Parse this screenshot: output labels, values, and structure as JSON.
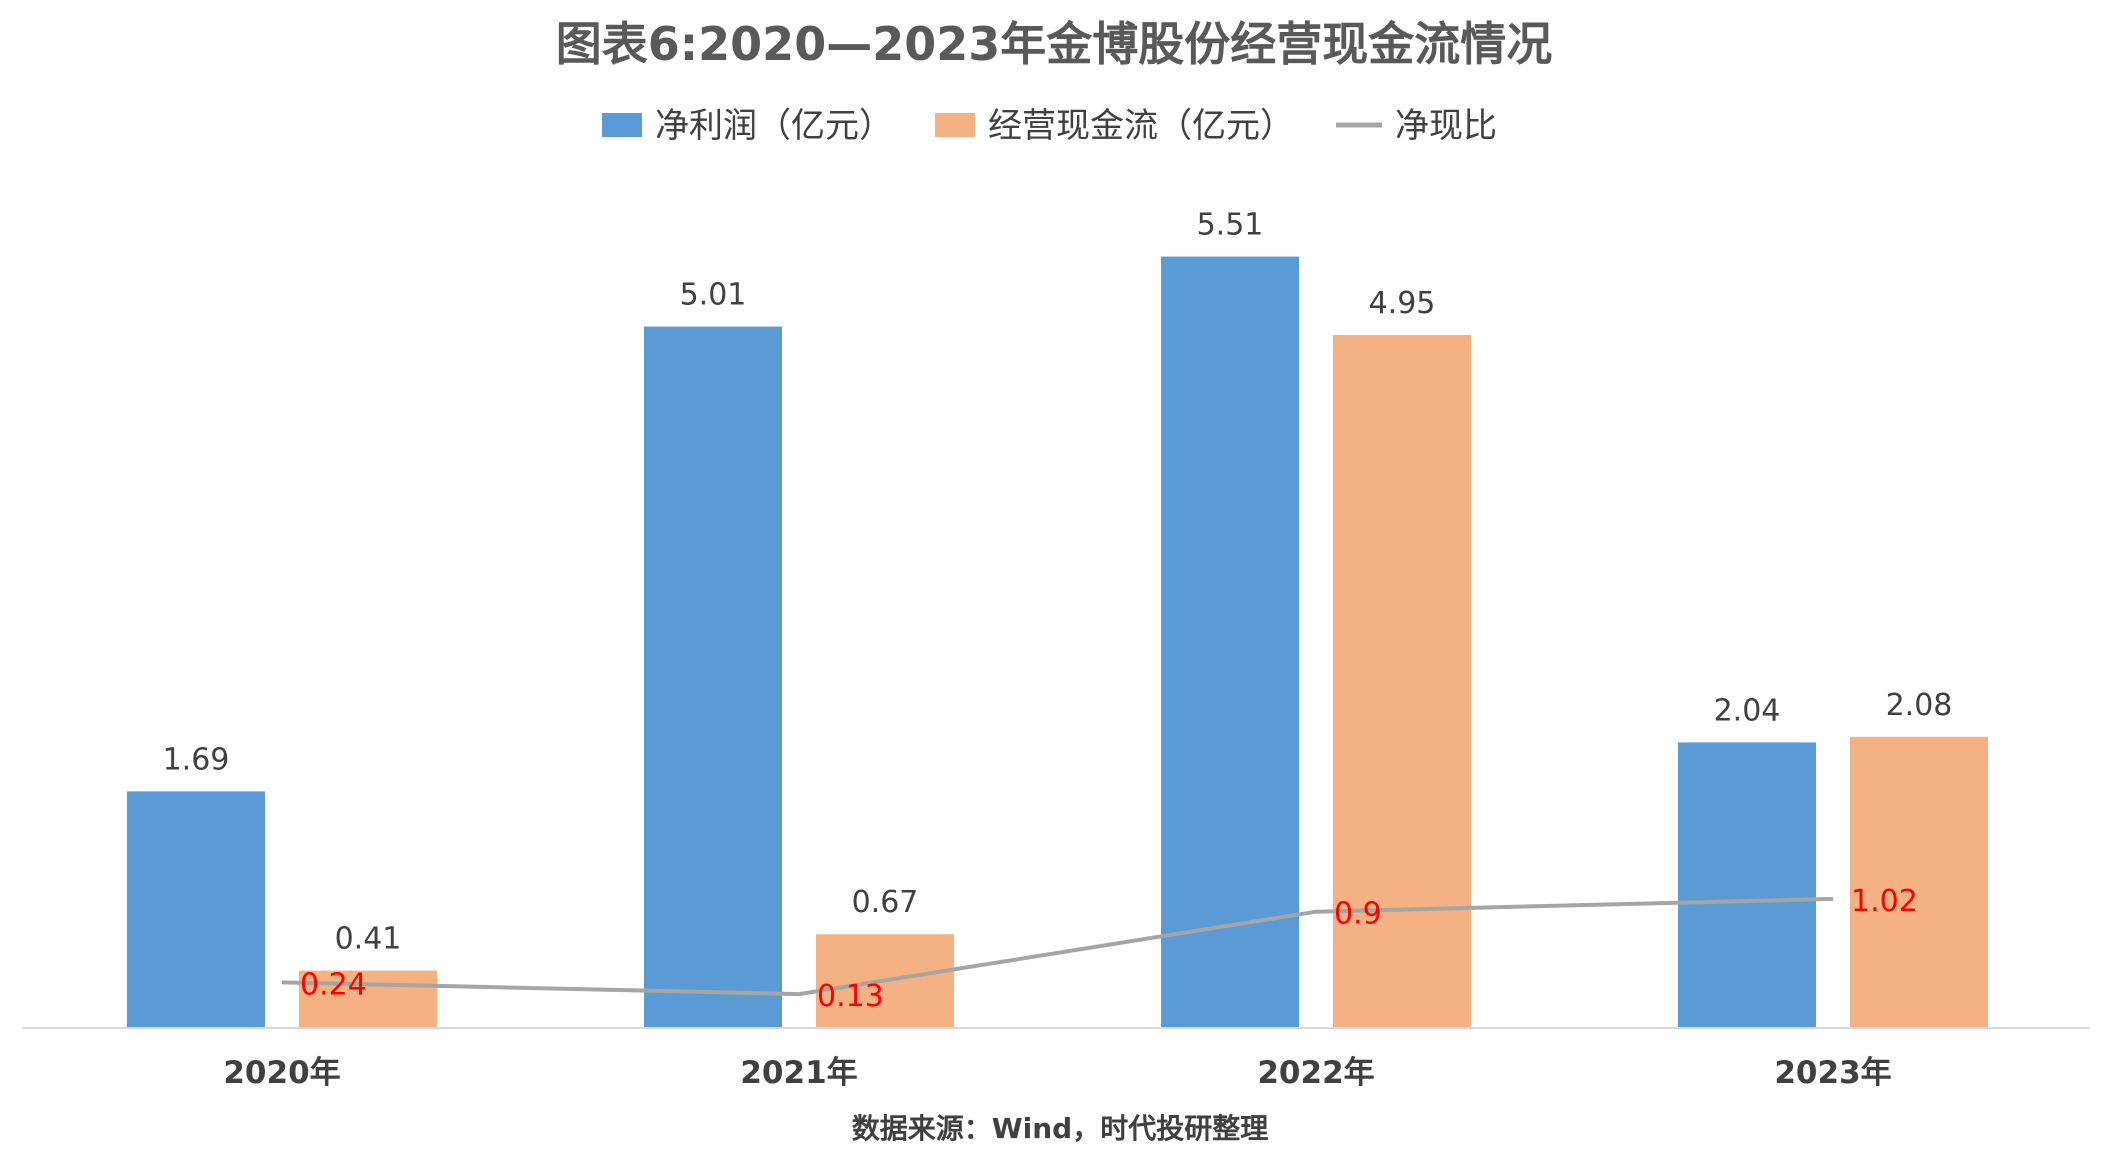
{
  "chart_data": {
    "type": "bar",
    "title": "图表6:2020—2023年金博股份经营现金流情况",
    "categories": [
      "2020年",
      "2021年",
      "2022年",
      "2023年"
    ],
    "series": [
      {
        "name": "净利润（亿元）",
        "kind": "bar",
        "color": "#5b9bd5",
        "values": [
          1.69,
          5.01,
          5.51,
          2.04
        ]
      },
      {
        "name": "经营现金流（亿元）",
        "kind": "bar",
        "color": "#f4b183",
        "values": [
          0.41,
          0.67,
          4.95,
          2.08
        ]
      },
      {
        "name": "净现比",
        "kind": "line",
        "color": "#a5a5a5",
        "values": [
          0.24,
          0.13,
          0.9,
          1.02
        ]
      }
    ],
    "ratio_label_color": "#ff0000",
    "ylim": [
      0,
      6
    ],
    "grid": false,
    "legend_position": "top-center",
    "source": "数据来源：Wind，时代投研整理"
  }
}
